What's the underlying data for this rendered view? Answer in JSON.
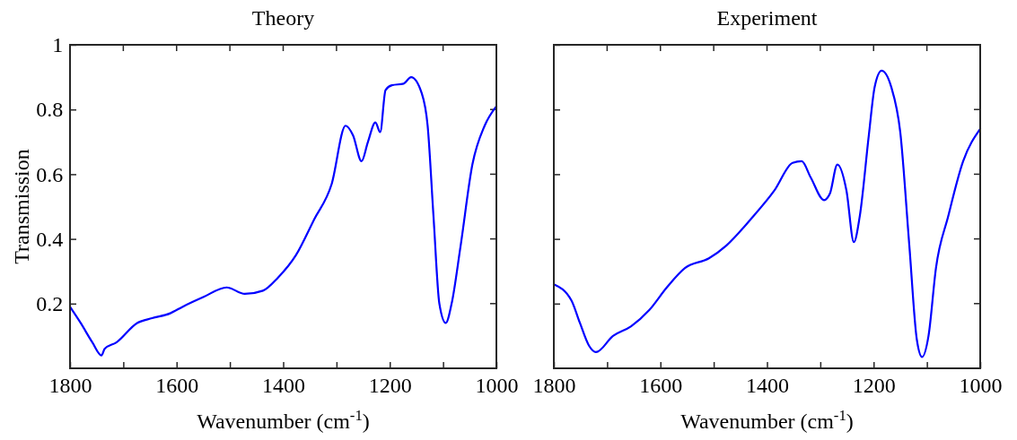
{
  "chart_data": [
    {
      "type": "line",
      "title": "Theory",
      "xlabel": "Wavenumber (cm$^{-1}$)",
      "ylabel": "Transmission",
      "xlim": [
        1800,
        1000
      ],
      "xticks": [
        1800,
        {
          "value": 1700,
          "label": null
        },
        1600,
        {
          "value": 1500,
          "label": null
        },
        1400,
        {
          "value": 1300,
          "label": null
        },
        1200,
        {
          "value": 1100,
          "label": null
        },
        1000
      ],
      "ylim": [
        0,
        1
      ],
      "yticks": [
        0.2,
        0.4,
        0.6,
        0.8,
        1
      ],
      "series": [
        {
          "color": "#0000ff",
          "x": [
            1800,
            1780,
            1758,
            1741,
            1735,
            1713,
            1674,
            1646,
            1612,
            1589,
            1550,
            1506,
            1472,
            1438,
            1410,
            1376,
            1342,
            1309,
            1283,
            1269,
            1253,
            1241,
            1227,
            1218,
            1208,
            1196,
            1174,
            1160,
            1140,
            1129,
            1118,
            1107,
            1095,
            1084,
            1067,
            1045,
            1022,
            1000
          ],
          "values": [
            0.19,
            0.14,
            0.08,
            0.04,
            0.06,
            0.08,
            0.14,
            0.155,
            0.17,
            0.19,
            0.22,
            0.25,
            0.23,
            0.24,
            0.28,
            0.35,
            0.46,
            0.57,
            0.75,
            0.72,
            0.64,
            0.7,
            0.76,
            0.73,
            0.86,
            0.875,
            0.88,
            0.9,
            0.85,
            0.75,
            0.47,
            0.2,
            0.14,
            0.2,
            0.38,
            0.63,
            0.75,
            0.81
          ]
        }
      ]
    },
    {
      "type": "line",
      "title": "Experiment",
      "xlabel": "Wavenumber (cm$^{-1}$)",
      "xlim": [
        1800,
        1000
      ],
      "xticks": [
        1800,
        {
          "value": 1700,
          "label": null
        },
        1600,
        {
          "value": 1500,
          "label": null
        },
        1400,
        {
          "value": 1300,
          "label": null
        },
        1200,
        {
          "value": 1100,
          "label": null
        },
        1000
      ],
      "ylim": [
        0,
        1
      ],
      "yticks": [
        {
          "value": 0.2,
          "label": null
        },
        {
          "value": 0.4,
          "label": null
        },
        {
          "value": 0.6,
          "label": null
        },
        {
          "value": 0.8,
          "label": null
        },
        {
          "value": 1,
          "label": null
        }
      ],
      "tick_labels": "x",
      "series": [
        {
          "color": "#0000ff",
          "x": [
            1800,
            1767,
            1751,
            1734,
            1721,
            1689,
            1655,
            1621,
            1588,
            1554,
            1509,
            1476,
            1431,
            1386,
            1352,
            1335,
            1318,
            1293,
            1282,
            1268,
            1251,
            1237,
            1226,
            1209,
            1198,
            1185,
            1167,
            1150,
            1133,
            1119,
            1109,
            1097,
            1083,
            1060,
            1032,
            1000
          ],
          "values": [
            0.26,
            0.21,
            0.14,
            0.07,
            0.05,
            0.1,
            0.13,
            0.18,
            0.25,
            0.31,
            0.34,
            0.38,
            0.46,
            0.55,
            0.635,
            0.64,
            0.59,
            0.52,
            0.54,
            0.63,
            0.55,
            0.39,
            0.47,
            0.72,
            0.87,
            0.92,
            0.87,
            0.73,
            0.38,
            0.09,
            0.035,
            0.1,
            0.31,
            0.47,
            0.64,
            0.74
          ]
        }
      ]
    }
  ]
}
